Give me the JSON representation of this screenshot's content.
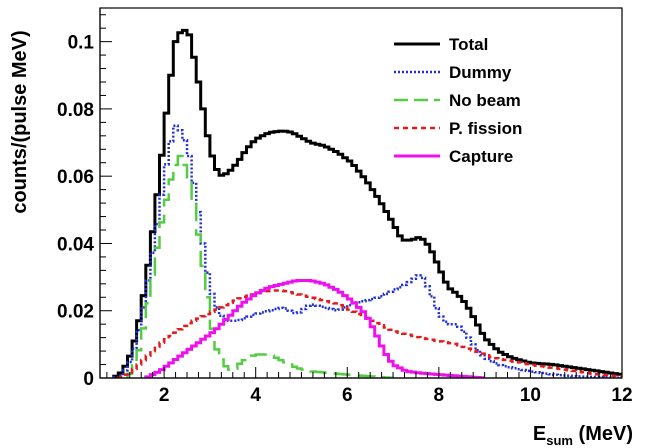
{
  "chart_data": {
    "type": "line",
    "xlabel_main": "E",
    "xlabel_sub": "sum",
    "xlabel_unit": " (MeV)",
    "ylabel": "counts/(pulse MeV)",
    "xlim": [
      0.6,
      12
    ],
    "ylim": [
      0,
      0.11
    ],
    "x_ticks": [
      2,
      4,
      6,
      8,
      10,
      12
    ],
    "y_ticks": [
      0,
      0.02,
      0.04,
      0.06,
      0.08,
      0.1
    ],
    "y_tick_labels": [
      "0",
      "0.02",
      "0.04",
      "0.06",
      "0.08",
      "0.1"
    ],
    "grid": false,
    "legend_position": "top-right",
    "series": [
      {
        "name": "Total",
        "color": "#000000",
        "dash": "solid",
        "points": [
          [
            0.9,
            0
          ],
          [
            1.1,
            0.002
          ],
          [
            1.3,
            0.008
          ],
          [
            1.5,
            0.02
          ],
          [
            1.7,
            0.038
          ],
          [
            1.9,
            0.06
          ],
          [
            2.1,
            0.085
          ],
          [
            2.25,
            0.1
          ],
          [
            2.4,
            0.104
          ],
          [
            2.55,
            0.102
          ],
          [
            2.7,
            0.092
          ],
          [
            2.85,
            0.08
          ],
          [
            3.0,
            0.068
          ],
          [
            3.2,
            0.06
          ],
          [
            3.4,
            0.061
          ],
          [
            3.6,
            0.064
          ],
          [
            3.8,
            0.068
          ],
          [
            4.0,
            0.071
          ],
          [
            4.3,
            0.073
          ],
          [
            4.6,
            0.0735
          ],
          [
            4.8,
            0.073
          ],
          [
            5.0,
            0.0715
          ],
          [
            5.2,
            0.07
          ],
          [
            5.5,
            0.069
          ],
          [
            5.8,
            0.067
          ],
          [
            6.1,
            0.064
          ],
          [
            6.4,
            0.059
          ],
          [
            6.7,
            0.053
          ],
          [
            7.0,
            0.046
          ],
          [
            7.2,
            0.041
          ],
          [
            7.4,
            0.041
          ],
          [
            7.6,
            0.042
          ],
          [
            7.8,
            0.039
          ],
          [
            8.0,
            0.033
          ],
          [
            8.2,
            0.027
          ],
          [
            8.4,
            0.025
          ],
          [
            8.6,
            0.022
          ],
          [
            8.8,
            0.017
          ],
          [
            9.0,
            0.012
          ],
          [
            9.3,
            0.008
          ],
          [
            9.6,
            0.006
          ],
          [
            10.0,
            0.0045
          ],
          [
            10.5,
            0.004
          ],
          [
            11.0,
            0.003
          ],
          [
            11.5,
            0.002
          ],
          [
            12.0,
            0.001
          ]
        ]
      },
      {
        "name": "Dummy",
        "color": "#1f2fd6",
        "dash": "2,2",
        "points": [
          [
            0.9,
            0
          ],
          [
            1.1,
            0.001
          ],
          [
            1.3,
            0.006
          ],
          [
            1.5,
            0.017
          ],
          [
            1.7,
            0.033
          ],
          [
            1.9,
            0.05
          ],
          [
            2.1,
            0.068
          ],
          [
            2.25,
            0.075
          ],
          [
            2.4,
            0.073
          ],
          [
            2.55,
            0.066
          ],
          [
            2.7,
            0.054
          ],
          [
            2.85,
            0.04
          ],
          [
            3.0,
            0.027
          ],
          [
            3.2,
            0.019
          ],
          [
            3.4,
            0.017
          ],
          [
            3.6,
            0.017
          ],
          [
            3.8,
            0.018
          ],
          [
            4.0,
            0.019
          ],
          [
            4.3,
            0.02
          ],
          [
            4.6,
            0.021
          ],
          [
            4.9,
            0.019
          ],
          [
            5.2,
            0.022
          ],
          [
            5.5,
            0.021
          ],
          [
            5.8,
            0.02
          ],
          [
            6.1,
            0.022
          ],
          [
            6.4,
            0.023
          ],
          [
            6.7,
            0.024
          ],
          [
            7.0,
            0.026
          ],
          [
            7.3,
            0.028
          ],
          [
            7.6,
            0.031
          ],
          [
            7.8,
            0.026
          ],
          [
            8.0,
            0.019
          ],
          [
            8.2,
            0.016
          ],
          [
            8.4,
            0.016
          ],
          [
            8.6,
            0.013
          ],
          [
            8.8,
            0.009
          ],
          [
            9.0,
            0.006
          ],
          [
            9.3,
            0.004
          ],
          [
            9.6,
            0.003
          ],
          [
            10.0,
            0.002
          ],
          [
            10.5,
            0.001
          ],
          [
            11.0,
            0.0005
          ],
          [
            12.0,
            0
          ]
        ]
      },
      {
        "name": "No beam",
        "color": "#55cc44",
        "dash": "18,8",
        "points": [
          [
            1.2,
            0
          ],
          [
            1.4,
            0.005
          ],
          [
            1.6,
            0.018
          ],
          [
            1.8,
            0.035
          ],
          [
            2.0,
            0.05
          ],
          [
            2.2,
            0.062
          ],
          [
            2.35,
            0.066
          ],
          [
            2.5,
            0.062
          ],
          [
            2.65,
            0.052
          ],
          [
            2.8,
            0.038
          ],
          [
            2.95,
            0.024
          ],
          [
            3.1,
            0.01
          ],
          [
            3.3,
            0.004
          ],
          [
            3.5,
            0.002
          ],
          [
            3.7,
            0.005
          ],
          [
            4.0,
            0.007
          ],
          [
            4.3,
            0.007
          ],
          [
            4.6,
            0.005
          ],
          [
            4.9,
            0.003
          ],
          [
            5.2,
            0.002
          ],
          [
            5.6,
            0.0015
          ],
          [
            6.0,
            0.001
          ],
          [
            6.5,
            0.0005
          ],
          [
            7.0,
            0
          ]
        ]
      },
      {
        "name": "P. fission",
        "color": "#e41a1c",
        "dash": "5,4",
        "points": [
          [
            1.0,
            0
          ],
          [
            1.3,
            0.002
          ],
          [
            1.6,
            0.006
          ],
          [
            1.9,
            0.01
          ],
          [
            2.2,
            0.013
          ],
          [
            2.5,
            0.016
          ],
          [
            2.8,
            0.018
          ],
          [
            3.1,
            0.02
          ],
          [
            3.4,
            0.022
          ],
          [
            3.7,
            0.024
          ],
          [
            4.0,
            0.025
          ],
          [
            4.3,
            0.026
          ],
          [
            4.6,
            0.026
          ],
          [
            4.9,
            0.025
          ],
          [
            5.2,
            0.024
          ],
          [
            5.5,
            0.023
          ],
          [
            5.8,
            0.022
          ],
          [
            6.1,
            0.02
          ],
          [
            6.4,
            0.018
          ],
          [
            6.7,
            0.016
          ],
          [
            7.0,
            0.014
          ],
          [
            7.3,
            0.013
          ],
          [
            7.6,
            0.012
          ],
          [
            8.0,
            0.011
          ],
          [
            8.4,
            0.01
          ],
          [
            8.8,
            0.008
          ],
          [
            9.2,
            0.006
          ],
          [
            9.6,
            0.005
          ],
          [
            10.0,
            0.004
          ],
          [
            10.5,
            0.003
          ],
          [
            11.0,
            0.002
          ],
          [
            11.5,
            0.001
          ],
          [
            12.0,
            0.0005
          ]
        ]
      },
      {
        "name": "Capture",
        "color": "#ee11ee",
        "dash": "solid",
        "points": [
          [
            1.6,
            0
          ],
          [
            1.9,
            0.002
          ],
          [
            2.2,
            0.005
          ],
          [
            2.5,
            0.008
          ],
          [
            2.8,
            0.011
          ],
          [
            3.1,
            0.014
          ],
          [
            3.4,
            0.018
          ],
          [
            3.7,
            0.022
          ],
          [
            4.0,
            0.025
          ],
          [
            4.3,
            0.027
          ],
          [
            4.6,
            0.028
          ],
          [
            4.9,
            0.029
          ],
          [
            5.2,
            0.029
          ],
          [
            5.5,
            0.028
          ],
          [
            5.8,
            0.026
          ],
          [
            6.1,
            0.023
          ],
          [
            6.4,
            0.019
          ],
          [
            6.6,
            0.014
          ],
          [
            6.8,
            0.008
          ],
          [
            7.0,
            0.004
          ],
          [
            7.3,
            0.002
          ],
          [
            7.6,
            0.0015
          ],
          [
            8.0,
            0.001
          ],
          [
            8.5,
            0.0005
          ],
          [
            9.0,
            0
          ]
        ]
      }
    ]
  }
}
